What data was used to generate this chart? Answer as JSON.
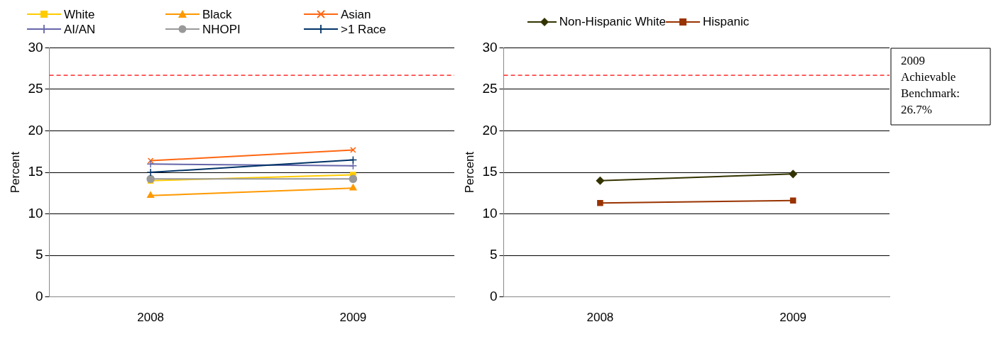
{
  "chart_data": [
    {
      "type": "line",
      "categories": [
        "2008",
        "2009"
      ],
      "ylabel": "Percent",
      "ylim": [
        0,
        30
      ],
      "yticks": [
        0,
        5,
        10,
        15,
        20,
        25,
        30
      ],
      "grid": "y",
      "legend": "top",
      "series": [
        {
          "name": "White",
          "color": "#ffcc00",
          "marker": "square",
          "values": [
            14.0,
            14.7
          ]
        },
        {
          "name": "Black",
          "color": "#ff9900",
          "marker": "triangle",
          "values": [
            12.2,
            13.1
          ]
        },
        {
          "name": "Asian",
          "color": "#ff6611",
          "marker": "x",
          "values": [
            16.4,
            17.7
          ]
        },
        {
          "name": "AI/AN",
          "color": "#6666aa",
          "marker": "cross",
          "values": [
            16.0,
            15.8
          ]
        },
        {
          "name": "NHOPI",
          "color": "#999999",
          "marker": "circle",
          "values": [
            14.2,
            14.2
          ]
        },
        {
          "name": ">1 Race",
          "color": "#003366",
          "marker": "cross",
          "values": [
            15.0,
            16.5
          ]
        }
      ],
      "ref_lines": [
        {
          "axis": "y",
          "value": 26.7,
          "color": "#ff0000",
          "line_style": "dashed"
        }
      ]
    },
    {
      "type": "line",
      "categories": [
        "2008",
        "2009"
      ],
      "ylabel": "Percent",
      "ylim": [
        0,
        30
      ],
      "yticks": [
        0,
        5,
        10,
        15,
        20,
        25,
        30
      ],
      "grid": "y",
      "legend": "top",
      "series": [
        {
          "name": "Non-Hispanic White",
          "color": "#333300",
          "marker": "diamond",
          "values": [
            14.0,
            14.8
          ]
        },
        {
          "name": "Hispanic",
          "color": "#993300",
          "marker": "square",
          "values": [
            11.3,
            11.6
          ]
        }
      ],
      "ref_lines": [
        {
          "axis": "y",
          "value": 26.7,
          "color": "#ff0000",
          "line_style": "dashed",
          "label": "2009 Achievable Benchmark: 26.7%"
        }
      ]
    }
  ]
}
